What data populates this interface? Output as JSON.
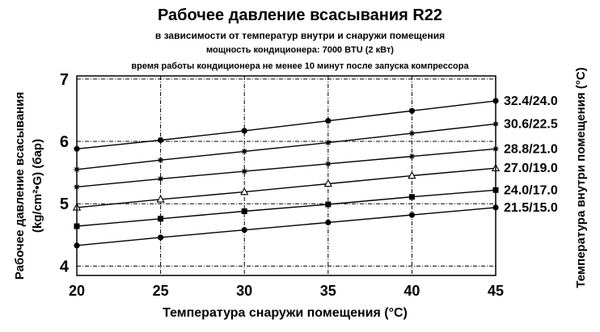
{
  "chart_data": {
    "type": "line",
    "title": "Рабочее давление всасывания R22",
    "subtitles": [
      "в зависимости от температур внутри и снаружи помещения",
      "мощность кондиционера: 7000 BTU (2 кВт)",
      "время работы кондиционера не менее 10 минут  после запуска компрессора"
    ],
    "xlabel": "Температура снаружи помещения (°С)",
    "ylabel_line1": "Рабочее давление всасывания",
    "ylabel_line2": "(kg/cm²•G) (бар)",
    "y2label": "Температура внутри помещения (°С)",
    "x": [
      20,
      25,
      30,
      35,
      40,
      45
    ],
    "xlim": [
      20,
      45
    ],
    "ylim": [
      3.85,
      7.05
    ],
    "x_ticks": [
      20,
      25,
      30,
      35,
      40,
      45
    ],
    "y_ticks": [
      4,
      5,
      6,
      7
    ],
    "grid": true,
    "series": [
      {
        "name": "32.4/24.0",
        "marker": "circle",
        "values": [
          5.88,
          6.02,
          6.17,
          6.33,
          6.49,
          6.65
        ]
      },
      {
        "name": "30.6/22.5",
        "marker": "star",
        "values": [
          5.55,
          5.7,
          5.84,
          5.98,
          6.13,
          6.28
        ]
      },
      {
        "name": "28.8/21.0",
        "marker": "star",
        "values": [
          5.27,
          5.4,
          5.52,
          5.64,
          5.76,
          5.88
        ]
      },
      {
        "name": "27.0/19.0",
        "marker": "triangle-open",
        "values": [
          4.94,
          5.07,
          5.19,
          5.32,
          5.45,
          5.57
        ]
      },
      {
        "name": "24.0/17.0",
        "marker": "square",
        "values": [
          4.64,
          4.76,
          4.88,
          4.99,
          5.11,
          5.22
        ]
      },
      {
        "name": "21.5/15.0",
        "marker": "circle",
        "values": [
          4.33,
          4.46,
          4.58,
          4.7,
          4.82,
          4.94
        ]
      }
    ]
  }
}
